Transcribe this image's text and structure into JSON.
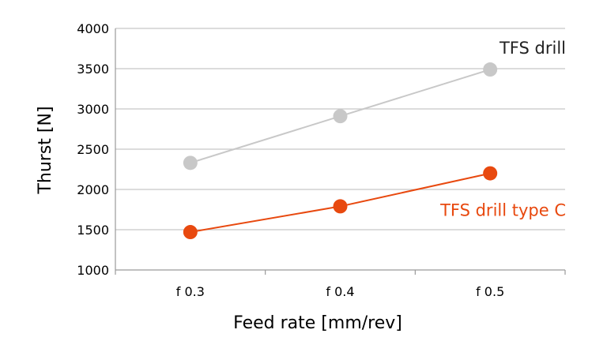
{
  "chart_data": {
    "type": "line",
    "categories": [
      "f 0.3",
      "f 0.4",
      "f 0.5"
    ],
    "xlabel": "Feed rate [mm/rev]",
    "ylabel": "Thurst [N]",
    "ylim": [
      1000,
      4000
    ],
    "yticks": [
      1000,
      1500,
      2000,
      2500,
      3000,
      3500,
      4000
    ],
    "grid": true,
    "legend": "inline labels",
    "series": [
      {
        "name": "TFS drill",
        "values": [
          2330,
          2910,
          3490
        ],
        "color": "#c8c8c8"
      },
      {
        "name": "TFS drill type C",
        "values": [
          1470,
          1790,
          2200
        ],
        "color": "#e8490f"
      }
    ]
  }
}
